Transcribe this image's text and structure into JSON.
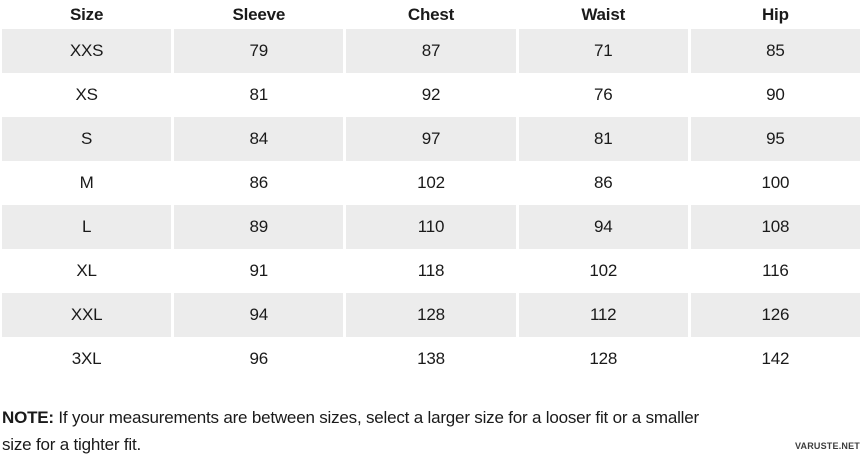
{
  "table": {
    "headers": [
      "Size",
      "Sleeve",
      "Chest",
      "Waist",
      "Hip"
    ],
    "rows": [
      {
        "size": "XXS",
        "values": [
          "79",
          "87",
          "71",
          "85"
        ]
      },
      {
        "size": "XS",
        "values": [
          "81",
          "92",
          "76",
          "90"
        ]
      },
      {
        "size": "S",
        "values": [
          "84",
          "97",
          "81",
          "95"
        ]
      },
      {
        "size": "M",
        "values": [
          "86",
          "102",
          "86",
          "100"
        ]
      },
      {
        "size": "L",
        "values": [
          "89",
          "110",
          "94",
          "108"
        ]
      },
      {
        "size": "XL",
        "values": [
          "91",
          "118",
          "102",
          "116"
        ]
      },
      {
        "size": "XXL",
        "values": [
          "94",
          "128",
          "112",
          "126"
        ]
      },
      {
        "size": "3XL",
        "values": [
          "96",
          "138",
          "128",
          "142"
        ]
      }
    ]
  },
  "note": {
    "label": "NOTE:",
    "line1": " If your measurements are between sizes, select a larger size for a looser fit or a smaller",
    "line2": "size for a tighter fit."
  },
  "watermark": "VARUSTE.NET",
  "colors": {
    "stripe": "#ececec",
    "text": "#1a1a1a",
    "background": "#ffffff"
  }
}
